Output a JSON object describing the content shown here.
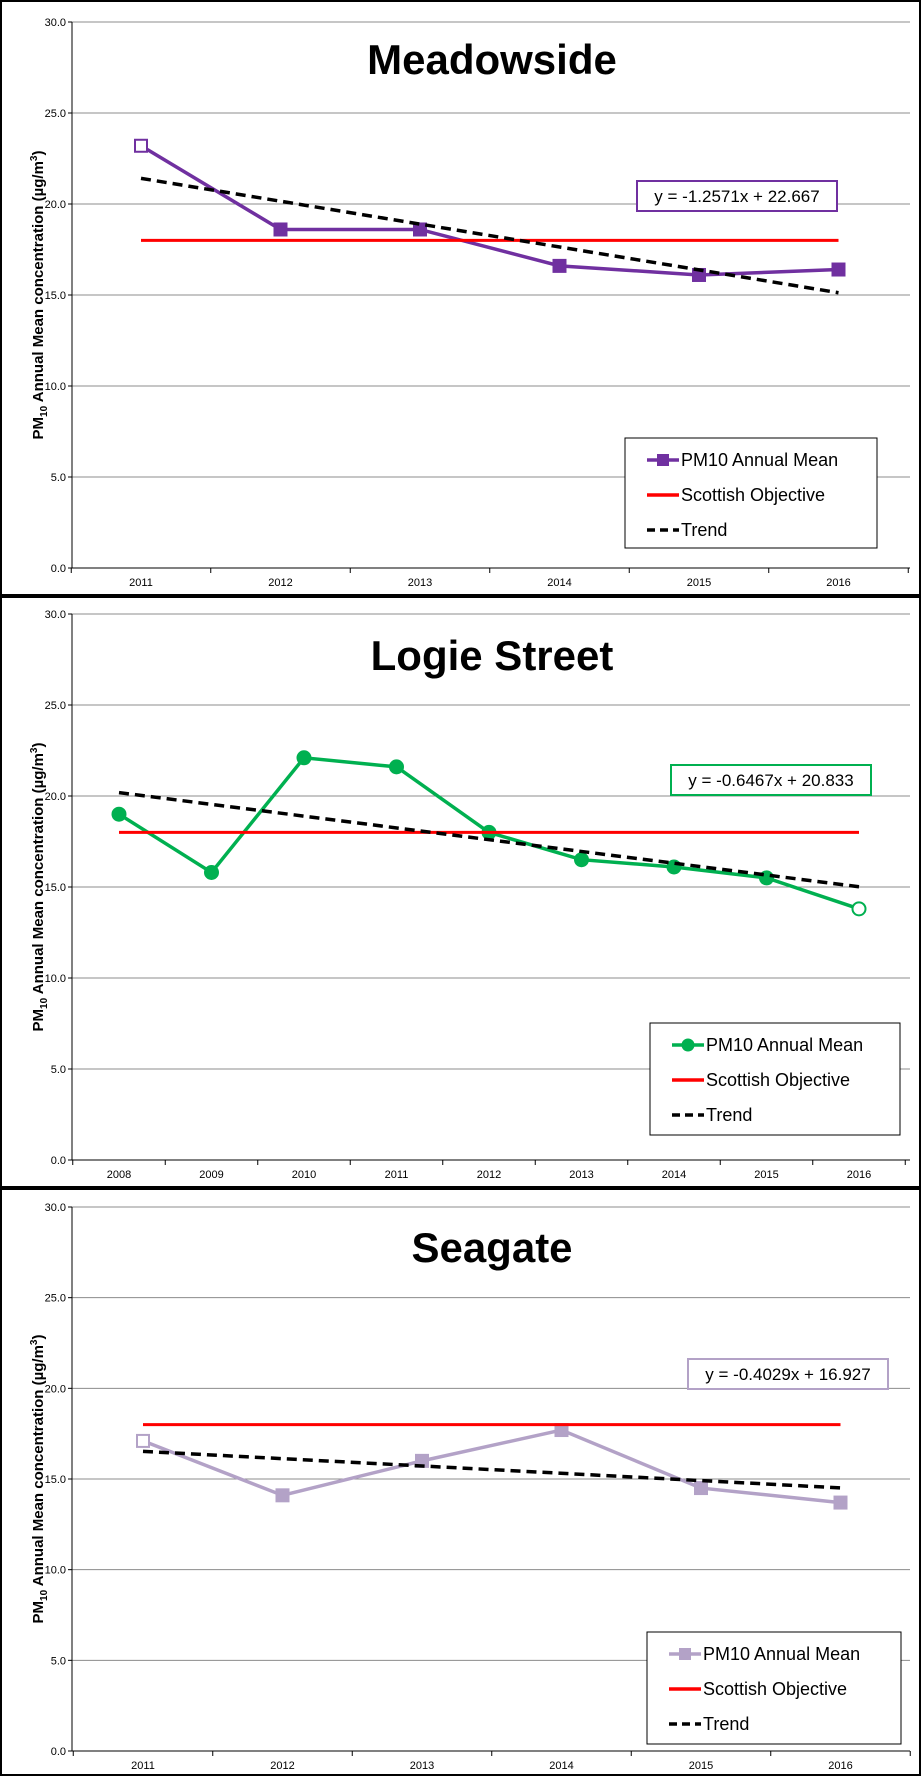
{
  "chart_data": [
    {
      "type": "line",
      "title": "Meadowside",
      "ylabel_main": "PM",
      "ylabel_sub": "10",
      "ylabel_rest": " Annual Mean concentration (µg/m",
      "ylabel_sup": "3",
      "ylabel_end": ")",
      "categories": [
        "2011",
        "2012",
        "2013",
        "2014",
        "2015",
        "2016"
      ],
      "ylim": [
        0,
        30
      ],
      "yticks": [
        "0.0",
        "5.0",
        "10.0",
        "15.0",
        "20.0",
        "25.0",
        "30.0"
      ],
      "grid": true,
      "series": [
        {
          "name": "PM10 Annual Mean",
          "kind": "data",
          "color": "#7030A0",
          "marker": "square",
          "values": [
            23.2,
            18.6,
            18.6,
            16.6,
            16.1,
            16.4
          ]
        },
        {
          "name": "Scottish Objective",
          "kind": "objective",
          "color": "#FF0000",
          "values": [
            18,
            18,
            18,
            18,
            18,
            18
          ]
        },
        {
          "name": "Trend",
          "kind": "trend",
          "color": "#000000",
          "slope": -1.2571,
          "intercept": 22.667
        }
      ],
      "equation": "y = -1.2571x + 22.667",
      "equation_color": "#7030A0",
      "legend_position": "bottom-right"
    },
    {
      "type": "line",
      "title": "Logie Street",
      "ylabel_main": "PM",
      "ylabel_sub": "10",
      "ylabel_rest": " Annual Mean concentration (µg/m",
      "ylabel_sup": "3",
      "ylabel_end": ")",
      "categories": [
        "2008",
        "2009",
        "2010",
        "2011",
        "2012",
        "2013",
        "2014",
        "2015",
        "2016"
      ],
      "ylim": [
        0,
        30
      ],
      "yticks": [
        "0.0",
        "5.0",
        "10.0",
        "15.0",
        "20.0",
        "25.0",
        "30.0"
      ],
      "grid": true,
      "series": [
        {
          "name": "PM10 Annual Mean",
          "kind": "data",
          "color": "#00B050",
          "marker": "circle",
          "values": [
            19.0,
            15.8,
            22.1,
            21.6,
            18.0,
            16.5,
            16.1,
            15.5,
            13.8
          ]
        },
        {
          "name": "Scottish Objective",
          "kind": "objective",
          "color": "#FF0000",
          "values": [
            18,
            18,
            18,
            18,
            18,
            18,
            18,
            18,
            18
          ]
        },
        {
          "name": "Trend",
          "kind": "trend",
          "color": "#000000",
          "slope": -0.6467,
          "intercept": 20.833
        }
      ],
      "equation": "y = -0.6467x + 20.833",
      "equation_color": "#00B050",
      "legend_position": "bottom-right"
    },
    {
      "type": "line",
      "title": "Seagate",
      "ylabel_main": "PM",
      "ylabel_sub": "10",
      "ylabel_rest": " Annual Mean concentration (µg/m",
      "ylabel_sup": "3",
      "ylabel_end": ")",
      "categories": [
        "2011",
        "2012",
        "2013",
        "2014",
        "2015",
        "2016"
      ],
      "ylim": [
        0,
        30
      ],
      "yticks": [
        "0.0",
        "5.0",
        "10.0",
        "15.0",
        "20.0",
        "25.0",
        "30.0"
      ],
      "grid": true,
      "series": [
        {
          "name": "PM10 Annual Mean",
          "kind": "data",
          "color": "#B3A2C7",
          "marker": "square",
          "values": [
            17.1,
            14.1,
            16.0,
            17.7,
            14.5,
            13.7
          ]
        },
        {
          "name": "Scottish Objective",
          "kind": "objective",
          "color": "#FF0000",
          "values": [
            18,
            18,
            18,
            18,
            18,
            18
          ]
        },
        {
          "name": "Trend",
          "kind": "trend",
          "color": "#000000",
          "slope": -0.4029,
          "intercept": 16.927
        }
      ],
      "equation": "y = -0.4029x + 16.927",
      "equation_color": "#B3A2C7",
      "legend_position": "bottom-right"
    }
  ]
}
